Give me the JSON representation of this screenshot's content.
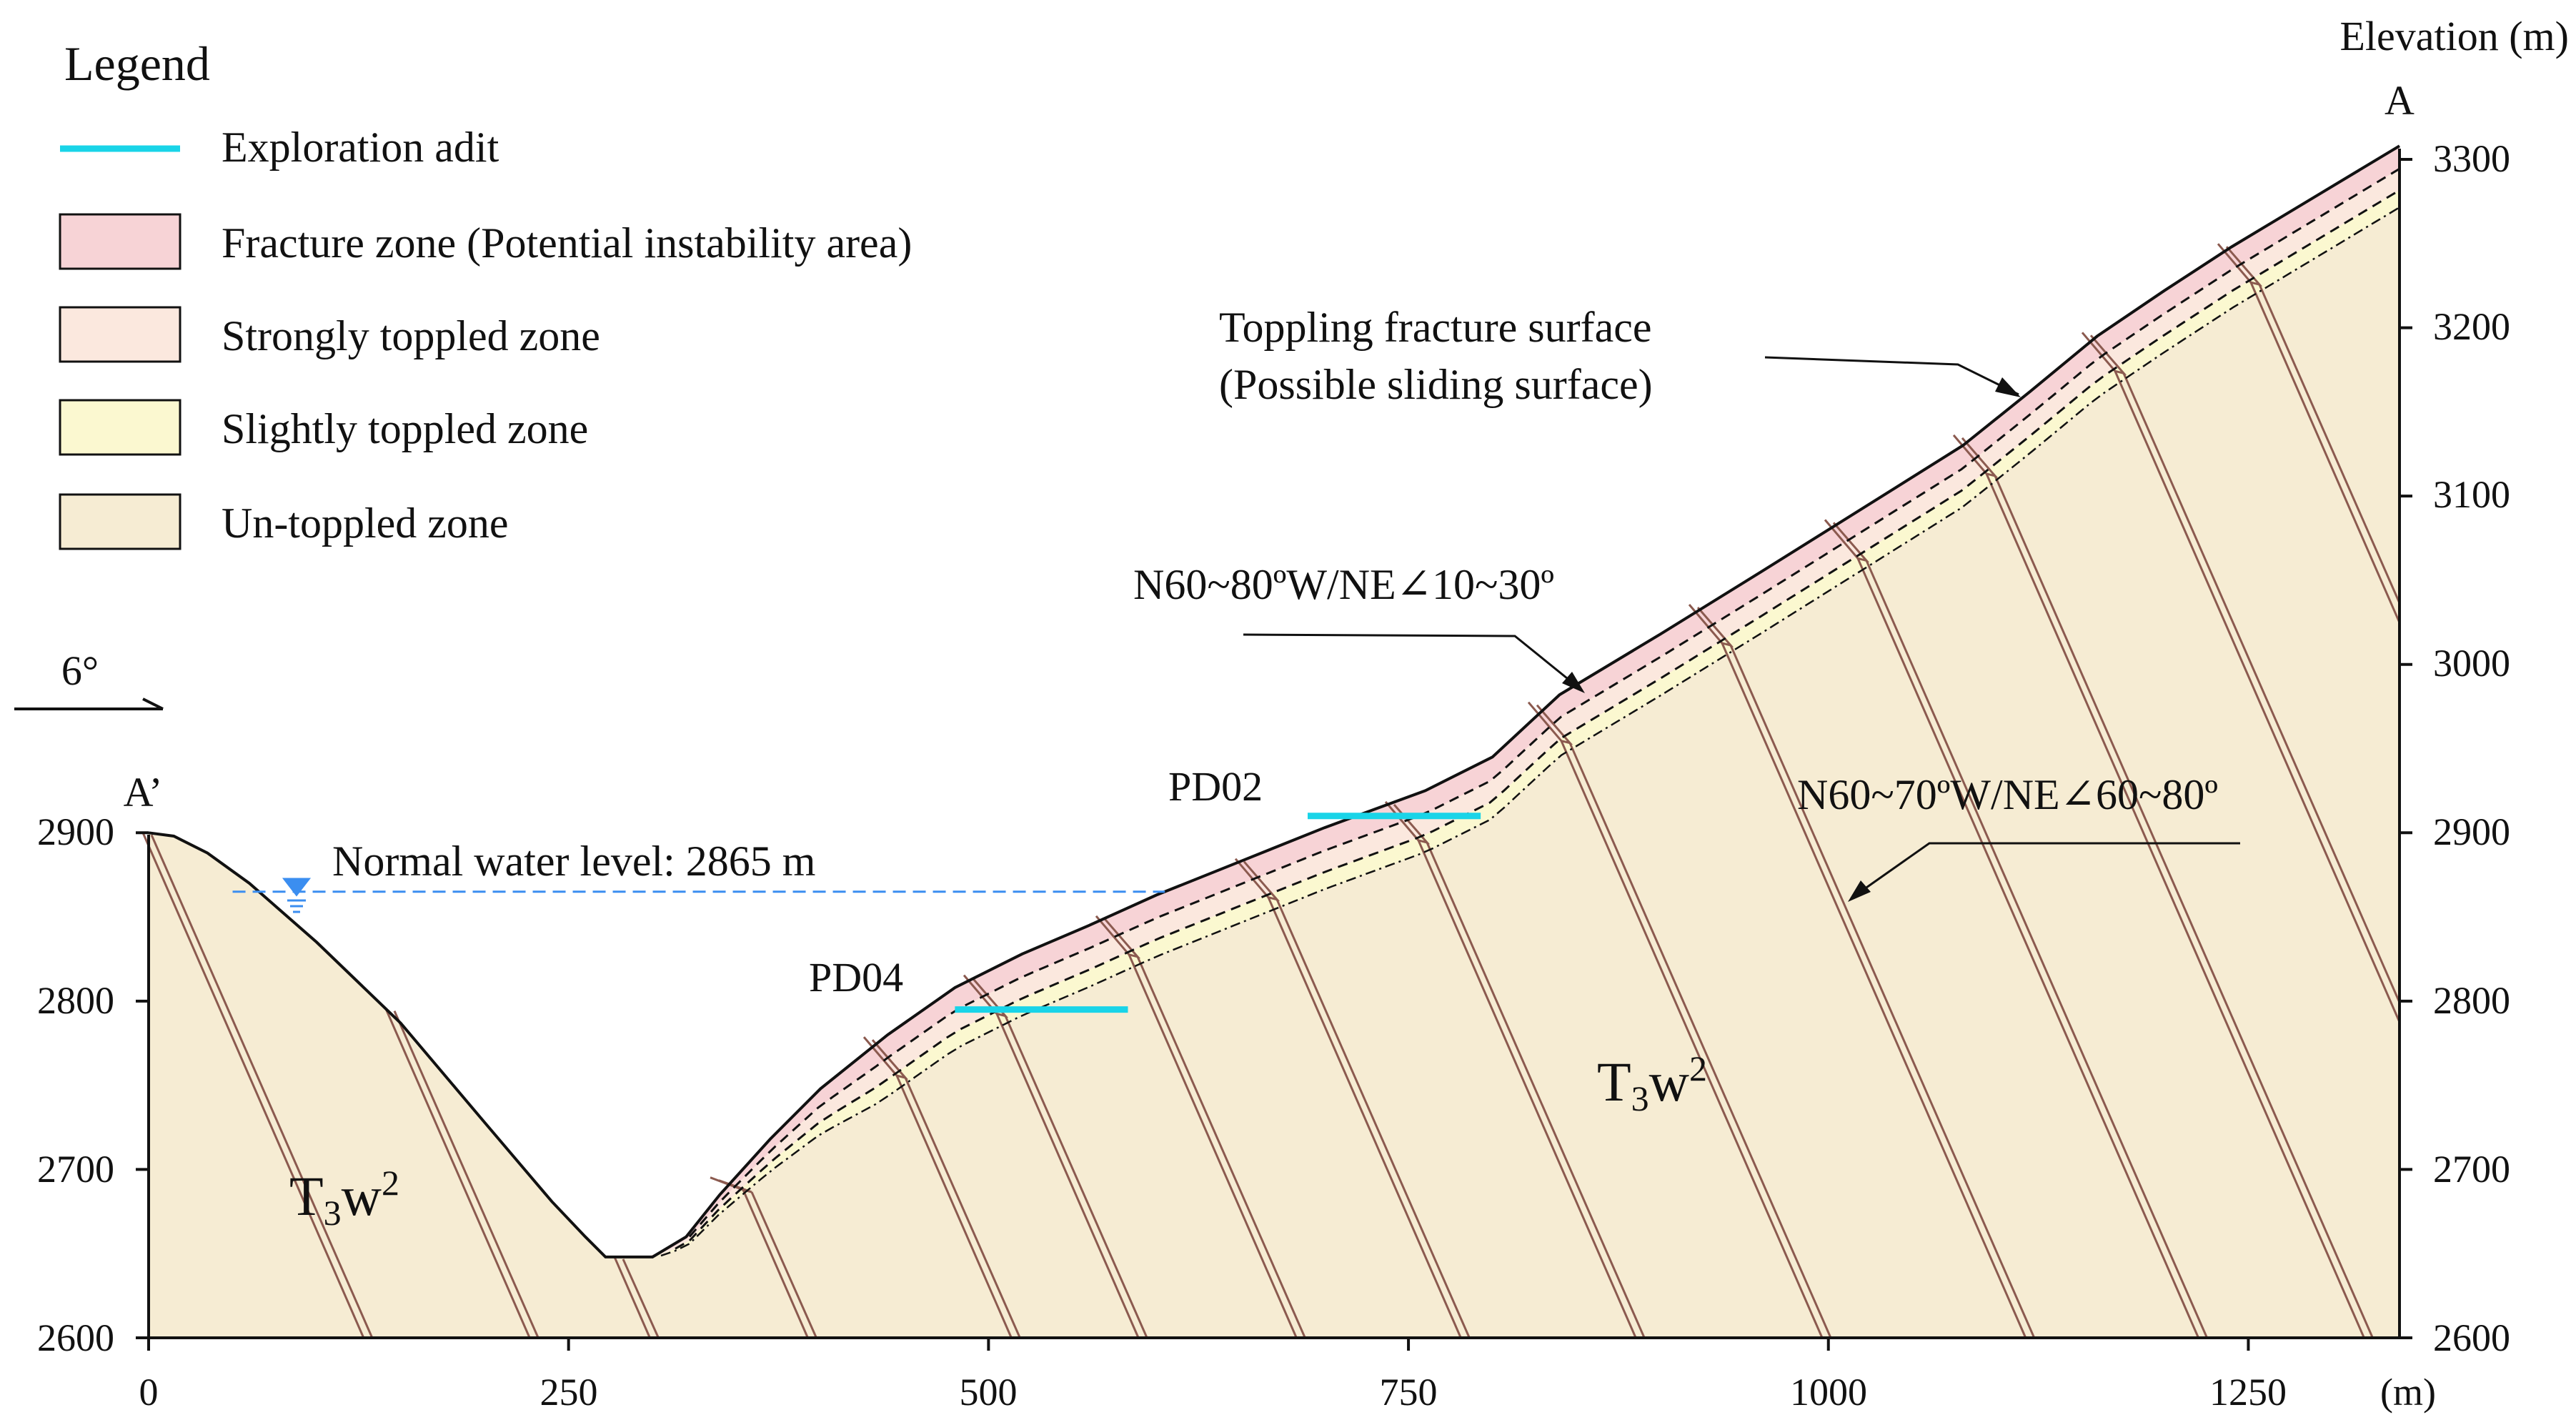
{
  "legend": {
    "title": "Legend",
    "items": [
      {
        "label": "Exploration adit",
        "kind": "line",
        "color": "#19d4e8"
      },
      {
        "label": "Fracture zone (Potential instability area)",
        "kind": "box",
        "color": "#f7d3d6"
      },
      {
        "label": "Strongly toppled zone",
        "kind": "box",
        "color": "#fbe8de"
      },
      {
        "label": "Slightly toppled zone",
        "kind": "box",
        "color": "#fbf8d0"
      },
      {
        "label": "Un-toppled zone",
        "kind": "box",
        "color": "#f6ecd3"
      }
    ]
  },
  "direction": {
    "label": "6°"
  },
  "endpoints": {
    "left": "A’",
    "right": "A"
  },
  "axes": {
    "x_ticks": [
      "0",
      "250",
      "500",
      "750",
      "1000",
      "1250"
    ],
    "x_unit": "(m)",
    "y_ticks": [
      "2600",
      "2700",
      "2800",
      "2900",
      "3000",
      "3100",
      "3200",
      "3300"
    ],
    "y_title": "Elevation (m)",
    "x_range": [
      0,
      1340
    ],
    "y_range": [
      2600,
      3300
    ]
  },
  "profile": {
    "distance_m": [
      0,
      15,
      35,
      60,
      100,
      150,
      200,
      240,
      260,
      272,
      300,
      320,
      340,
      370,
      400,
      440,
      480,
      520,
      560,
      600,
      650,
      700,
      760,
      800,
      840,
      900,
      960,
      1000,
      1040,
      1080,
      1120,
      1160,
      1200,
      1240,
      1290,
      1340
    ],
    "elevation_m": [
      2900,
      2898,
      2888,
      2870,
      2835,
      2787,
      2728,
      2681,
      2660,
      2648,
      2648,
      2660,
      2685,
      2718,
      2748,
      2780,
      2808,
      2828,
      2845,
      2863,
      2883,
      2903,
      2925,
      2945,
      2982,
      3018,
      3055,
      3080,
      3105,
      3130,
      3162,
      3195,
      3222,
      3248,
      3278,
      3308
    ]
  },
  "water_level": {
    "label": "Normal water level: 2865 m",
    "elevation_m": 2865,
    "from_m": 50,
    "to_m": 605
  },
  "adits": [
    {
      "name": "PD04",
      "from_m": 480,
      "to_m": 583,
      "elevation_m": 2795
    },
    {
      "name": "PD02",
      "from_m": 690,
      "to_m": 793,
      "elevation_m": 2910
    }
  ],
  "annotations": {
    "sliding_surface_line1": "Toppling fracture surface",
    "sliding_surface_line2": "(Possible sliding surface)",
    "joint_orientation": "N60~80ºW/NE∠10~30º",
    "bedding_orientation": "N60~70ºW/NE∠60~80º"
  },
  "strata": {
    "main": "T",
    "sub": "3",
    "tail": "w",
    "sup": "2"
  },
  "colors": {
    "fracture": "#f7d3d6",
    "strong": "#fbe8de",
    "slight": "#fbf8d0",
    "untoppled": "#f6ecd3",
    "adit": "#19d4e8",
    "water": "#3b8ef0",
    "bedding": "#8b5a4f",
    "outline": "#111111"
  }
}
